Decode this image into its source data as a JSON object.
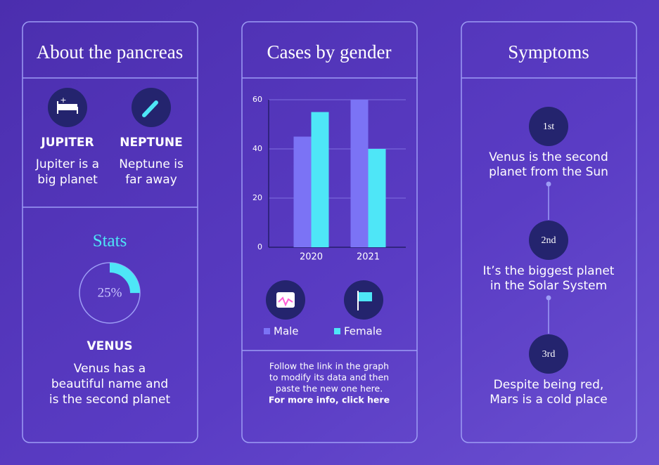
{
  "panels": [
    {
      "title": "About the pancreas",
      "items": [
        {
          "name": "JUPITER",
          "lines": [
            "Jupiter is a",
            "big planet"
          ]
        },
        {
          "name": "NEPTUNE",
          "lines": [
            "Neptune is",
            "far away"
          ]
        }
      ],
      "stats": {
        "title": "Stats",
        "percent": 25,
        "percent_label": "25%"
      },
      "feature": {
        "name": "VENUS",
        "lines": [
          "Venus has a",
          "beautiful name and",
          "is the second planet"
        ]
      }
    },
    {
      "title": "Cases by gender",
      "footer": [
        "Follow the link in the graph",
        "to modify its data and then",
        "paste the new one here.",
        "For more info, click here"
      ]
    },
    {
      "title": "Symptoms",
      "steps": [
        {
          "label": "1st",
          "lines": [
            "Venus is the second",
            "planet from the Sun"
          ]
        },
        {
          "label": "2nd",
          "lines": [
            "It’s the biggest planet",
            "in the Solar System"
          ]
        },
        {
          "label": "3rd",
          "lines": [
            "Despite being red,",
            "Mars is a cold place"
          ]
        }
      ]
    }
  ],
  "chart_data": {
    "type": "bar",
    "categories": [
      "2020",
      "2021"
    ],
    "series": [
      {
        "name": "Male",
        "color": "#7b73f5",
        "values": [
          45,
          60
        ]
      },
      {
        "name": "Female",
        "color": "#4ee6f7",
        "values": [
          55,
          40
        ]
      }
    ],
    "ylim": [
      0,
      60
    ],
    "yticks": [
      0,
      20,
      40,
      60
    ],
    "grid": true
  }
}
